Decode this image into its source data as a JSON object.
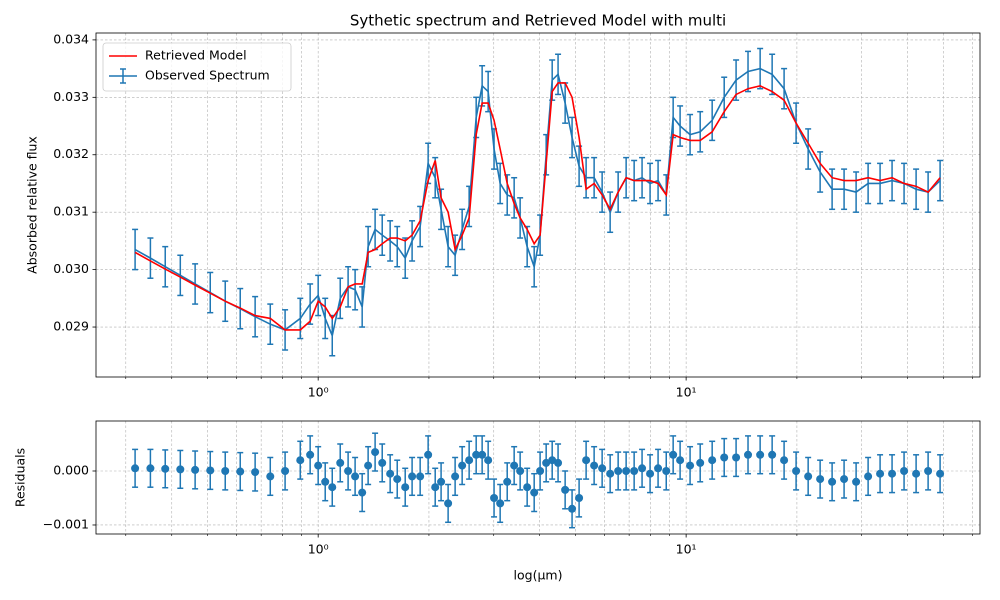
{
  "chart_data": [
    {
      "type": "line",
      "title": "Sythetic spectrum and Retrieved Model with multi",
      "ylabel": "Absorbed relative flux",
      "xscale": "log",
      "grid": true,
      "legend": "upper left",
      "x": [
        0.318,
        0.35,
        0.384,
        0.422,
        0.463,
        0.509,
        0.559,
        0.614,
        0.674,
        0.741,
        0.813,
        0.894,
        0.951,
        1.0,
        1.045,
        1.092,
        1.148,
        1.206,
        1.26,
        1.317,
        1.367,
        1.428,
        1.493,
        1.569,
        1.64,
        1.724,
        1.8,
        1.893,
        1.99,
        2.08,
        2.158,
        2.255,
        2.356,
        2.462,
        2.572,
        2.688,
        2.79,
        2.897,
        3.006,
        3.123,
        3.264,
        3.409,
        3.539,
        3.698,
        3.864,
        4.01,
        4.165,
        4.325,
        4.487,
        4.69,
        4.898,
        5.118,
        5.348,
        5.623,
        5.912,
        6.216,
        6.535,
        6.87,
        7.223,
        7.59,
        7.98,
        8.39,
        8.83,
        9.22,
        9.63,
        10.25,
        10.92,
        11.77,
        12.69,
        13.67,
        14.73,
        15.89,
        17.13,
        18.46,
        19.9,
        21.46,
        23.13,
        24.93,
        26.87,
        28.97,
        31.23,
        33.66,
        36.28,
        39.11,
        42.17,
        45.46,
        49.0
      ],
      "series": [
        {
          "name": "Retrieved Model",
          "color": "#ff0000",
          "values": [
            0.0303,
            0.03015,
            0.03001,
            0.02987,
            0.02973,
            0.02959,
            0.02945,
            0.02933,
            0.0292,
            0.02915,
            0.02895,
            0.02895,
            0.0291,
            0.02945,
            0.02935,
            0.02915,
            0.02935,
            0.0297,
            0.02975,
            0.02975,
            0.0303,
            0.03035,
            0.03045,
            0.03055,
            0.03055,
            0.0305,
            0.0306,
            0.03085,
            0.03155,
            0.0319,
            0.03125,
            0.031,
            0.03035,
            0.0306,
            0.0309,
            0.03235,
            0.0329,
            0.0329,
            0.0326,
            0.0321,
            0.0315,
            0.03115,
            0.0309,
            0.0307,
            0.03045,
            0.0306,
            0.03185,
            0.0331,
            0.03325,
            0.03325,
            0.033,
            0.0323,
            0.0314,
            0.0315,
            0.0313,
            0.03105,
            0.03135,
            0.0316,
            0.03155,
            0.03155,
            0.03155,
            0.0315,
            0.0313,
            0.03235,
            0.0323,
            0.03225,
            0.03225,
            0.0324,
            0.03275,
            0.03305,
            0.03315,
            0.0332,
            0.0331,
            0.03295,
            0.03255,
            0.0322,
            0.03185,
            0.0316,
            0.03155,
            0.03155,
            0.0316,
            0.03155,
            0.0316,
            0.0315,
            0.03145,
            0.03135,
            0.0316
          ]
        },
        {
          "name": "Observed Spectrum",
          "color": "#1f77b4",
          "error": 0.00035,
          "values": [
            0.03035,
            0.0302,
            0.03005,
            0.0299,
            0.02975,
            0.0296,
            0.02945,
            0.02932,
            0.02918,
            0.02905,
            0.02895,
            0.02915,
            0.0294,
            0.02955,
            0.02915,
            0.02885,
            0.0295,
            0.0297,
            0.02965,
            0.02935,
            0.0304,
            0.0307,
            0.0306,
            0.0305,
            0.0304,
            0.0302,
            0.0305,
            0.03075,
            0.03185,
            0.0316,
            0.03105,
            0.0304,
            0.03025,
            0.0307,
            0.0311,
            0.03265,
            0.0332,
            0.0331,
            0.0321,
            0.0315,
            0.0313,
            0.03125,
            0.0309,
            0.0304,
            0.03005,
            0.0306,
            0.032,
            0.0333,
            0.0334,
            0.0329,
            0.0323,
            0.0318,
            0.0316,
            0.0316,
            0.03135,
            0.031,
            0.03135,
            0.0316,
            0.03155,
            0.0316,
            0.0315,
            0.03155,
            0.0313,
            0.03265,
            0.0325,
            0.03235,
            0.0324,
            0.0326,
            0.033,
            0.0333,
            0.03345,
            0.0335,
            0.0334,
            0.03315,
            0.03255,
            0.0321,
            0.0317,
            0.0314,
            0.0314,
            0.03135,
            0.0315,
            0.0315,
            0.03155,
            0.0315,
            0.0314,
            0.03135,
            0.03155
          ]
        }
      ],
      "xlim": [
        0.249,
        62.9
      ],
      "xticks": [
        {
          "value": 1,
          "label": "10⁰"
        },
        {
          "value": 10,
          "label": "10¹"
        }
      ],
      "xminor_ticks": [
        0.3,
        0.4,
        0.5,
        0.6,
        0.7,
        0.8,
        0.9,
        2,
        3,
        4,
        5,
        6,
        7,
        8,
        9,
        20,
        30,
        40,
        50,
        60
      ],
      "ylim": [
        0.02813,
        0.03412
      ],
      "yticks": [
        0.029,
        {
          "value": 0.03,
          "label": "0.030"
        },
        0.031,
        0.032,
        0.033,
        0.034
      ]
    },
    {
      "type": "scatter",
      "ylabel": "Residuals",
      "xlabel": "log(μm)",
      "xscale": "log",
      "grid": true,
      "x": [
        0.318,
        0.35,
        0.384,
        0.422,
        0.463,
        0.509,
        0.559,
        0.614,
        0.674,
        0.741,
        0.813,
        0.894,
        0.951,
        1.0,
        1.045,
        1.092,
        1.148,
        1.206,
        1.26,
        1.317,
        1.367,
        1.428,
        1.493,
        1.569,
        1.64,
        1.724,
        1.8,
        1.893,
        1.99,
        2.08,
        2.158,
        2.255,
        2.356,
        2.462,
        2.572,
        2.688,
        2.79,
        2.897,
        3.006,
        3.123,
        3.264,
        3.409,
        3.539,
        3.698,
        3.864,
        4.01,
        4.165,
        4.325,
        4.487,
        4.69,
        4.898,
        5.118,
        5.348,
        5.623,
        5.912,
        6.216,
        6.535,
        6.87,
        7.223,
        7.59,
        7.98,
        8.39,
        8.83,
        9.22,
        9.63,
        10.25,
        10.92,
        11.77,
        12.69,
        13.67,
        14.73,
        15.89,
        17.13,
        18.46,
        19.9,
        21.46,
        23.13,
        24.93,
        26.87,
        28.97,
        31.23,
        33.66,
        36.28,
        39.11,
        42.17,
        45.46,
        49.0
      ],
      "color": "#1f77b4",
      "error": 0.00035,
      "values": [
        5e-05,
        5e-05,
        4e-05,
        3e-05,
        2e-05,
        1e-05,
        0,
        -1e-05,
        -2e-05,
        -0.0001,
        0,
        0.0002,
        0.0003,
        0.0001,
        -0.0002,
        -0.0003,
        0.00015,
        0,
        -0.0001,
        -0.0004,
        0.0001,
        0.00035,
        0.00015,
        -5e-05,
        -0.00015,
        -0.0003,
        -0.0001,
        -0.0001,
        0.0003,
        -0.0003,
        -0.0002,
        -0.0006,
        -0.0001,
        0.0001,
        0.0002,
        0.0003,
        0.0003,
        0.0002,
        -0.0005,
        -0.0006,
        -0.0002,
        0.0001,
        0,
        -0.0003,
        -0.0004,
        0,
        0.00015,
        0.0002,
        0.00015,
        -0.00035,
        -0.0007,
        -0.0005,
        0.0002,
        0.0001,
        5e-05,
        -5e-05,
        0,
        0,
        0,
        5e-05,
        -5e-05,
        5e-05,
        0,
        0.0003,
        0.0002,
        0.0001,
        0.00015,
        0.0002,
        0.00025,
        0.00025,
        0.0003,
        0.0003,
        0.0003,
        0.0002,
        0,
        -0.0001,
        -0.00015,
        -0.0002,
        -0.00015,
        -0.0002,
        -0.0001,
        -5e-05,
        -5e-05,
        0,
        -5e-05,
        0,
        -5e-05
      ],
      "xlim": [
        0.249,
        62.9
      ],
      "xticks": [
        {
          "value": 1,
          "label": "10⁰"
        },
        {
          "value": 10,
          "label": "10¹"
        }
      ],
      "xminor_ticks": [
        0.3,
        0.4,
        0.5,
        0.6,
        0.7,
        0.8,
        0.9,
        2,
        3,
        4,
        5,
        6,
        7,
        8,
        9,
        20,
        30,
        40,
        50,
        60
      ],
      "ylim": [
        -0.001167,
        0.000926
      ],
      "yticks": [
        {
          "value": -0.001,
          "label": "−0.001"
        },
        {
          "value": 0,
          "label": "0.000"
        }
      ]
    }
  ]
}
